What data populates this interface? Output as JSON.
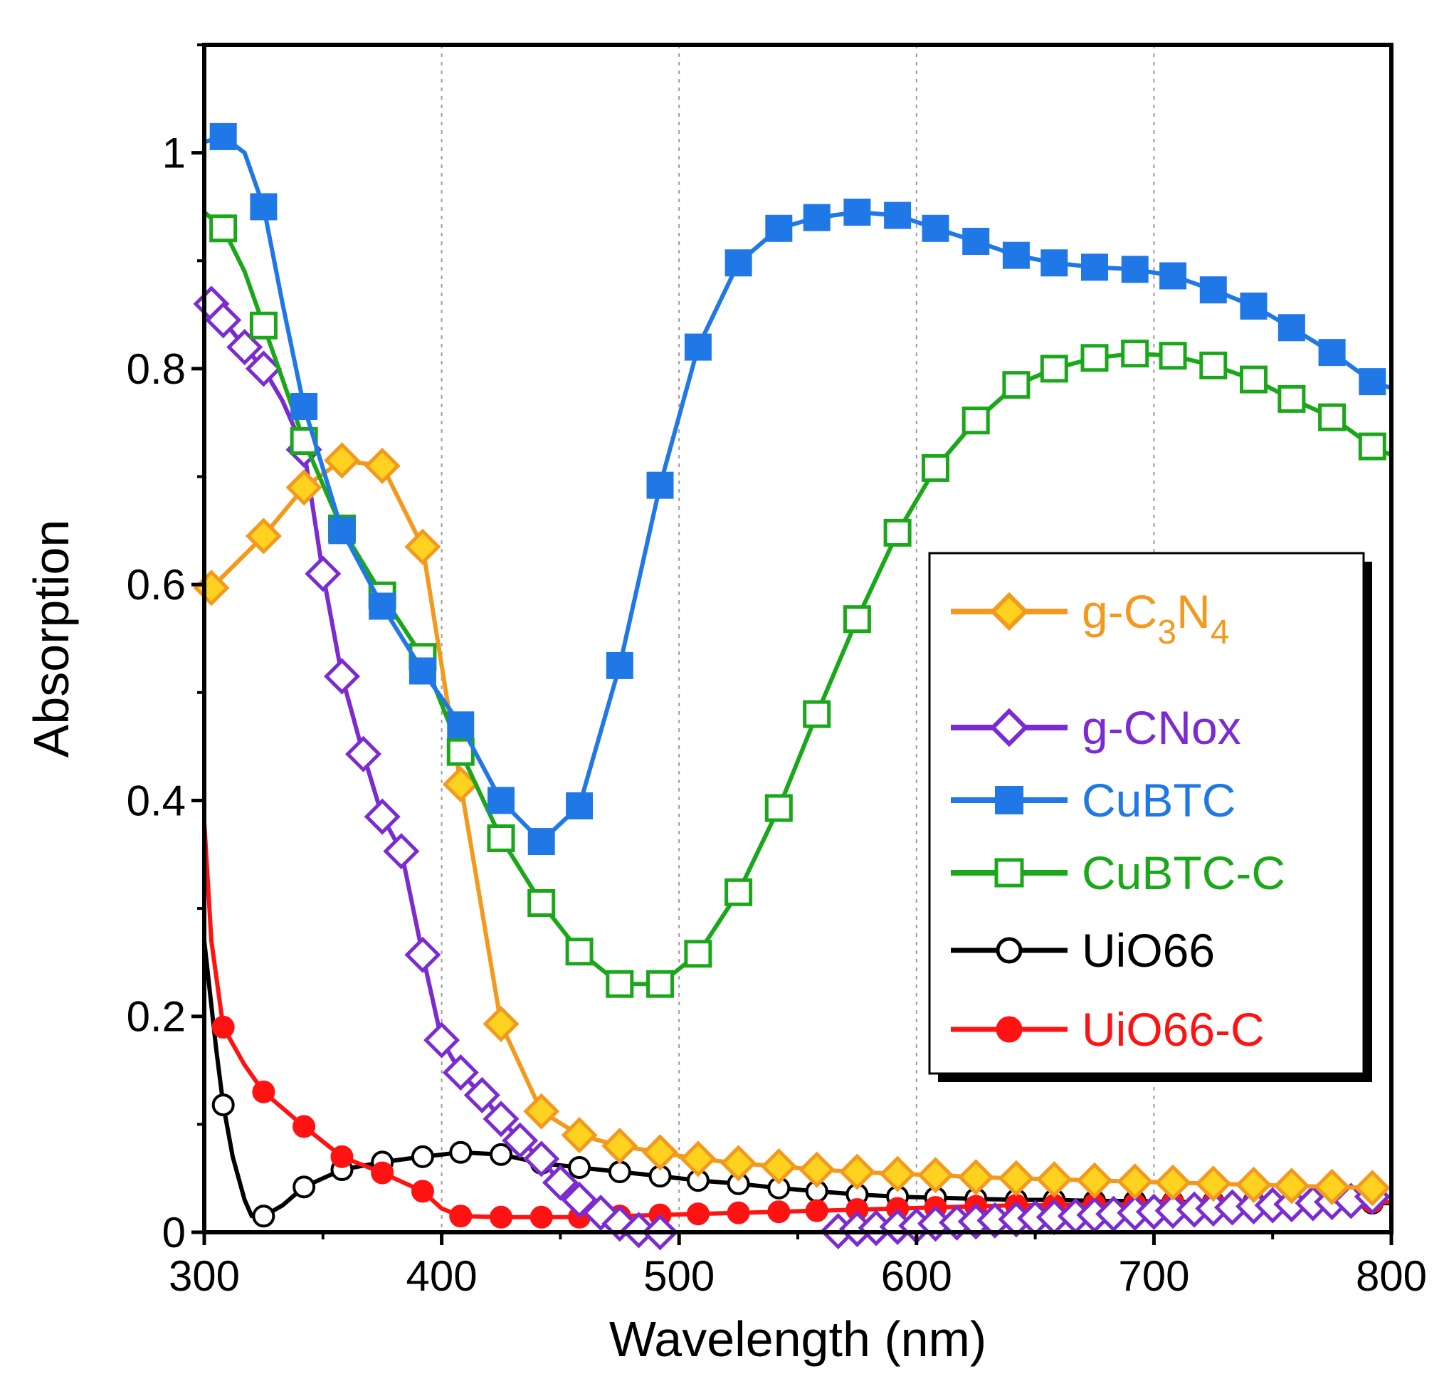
{
  "chart_data": {
    "type": "line",
    "xlabel": "Wavelength (nm)",
    "ylabel": "Absorption",
    "xlim": [
      300,
      800
    ],
    "ylim": [
      0,
      1.1
    ],
    "xticks": [
      300,
      400,
      500,
      600,
      700,
      800
    ],
    "xtick_labels": [
      "300",
      "400",
      "500",
      "600",
      "700",
      "800"
    ],
    "yticks": [
      0,
      0.2,
      0.4,
      0.6,
      0.8,
      1
    ],
    "ytick_labels": [
      "0",
      "0.2",
      "0.4",
      "0.6",
      "0.8",
      "1"
    ],
    "grid": "vertical dotted lines at x = 400, 500, 600, 700",
    "legend_position": "center-right",
    "series": [
      {
        "name": "g-C3N4",
        "label_main": "g-C",
        "label_sub1": "3",
        "label_mid": "N",
        "label_sub2": "4",
        "color": "#f39a1e",
        "fill": "#ffd21f",
        "marker": "diamond-filled",
        "x": [
          303,
          325,
          342,
          358,
          375,
          392,
          408,
          425,
          442,
          458,
          475,
          492,
          508,
          525,
          542,
          558,
          575,
          592,
          608,
          625,
          642,
          658,
          675,
          692,
          708,
          725,
          742,
          758,
          775,
          792
        ],
        "y": [
          0.597,
          0.645,
          0.69,
          0.715,
          0.71,
          0.635,
          0.415,
          0.193,
          0.112,
          0.09,
          0.08,
          0.074,
          0.068,
          0.064,
          0.061,
          0.058,
          0.056,
          0.054,
          0.053,
          0.051,
          0.05,
          0.049,
          0.048,
          0.047,
          0.046,
          0.045,
          0.044,
          0.043,
          0.042,
          0.041
        ]
      },
      {
        "name": "g-CNox",
        "label": "g-CNox",
        "color": "#7b2bd0",
        "fill": "#ffffff",
        "marker": "diamond-open",
        "x": [
          303,
          308,
          317,
          325,
          333,
          342,
          350,
          358,
          367,
          375,
          383,
          392,
          400,
          408,
          417,
          425,
          433,
          442,
          450,
          458,
          467,
          475,
          483,
          492,
          500,
          508,
          517,
          525,
          533,
          542,
          550,
          558,
          567,
          575,
          583,
          592,
          600,
          608,
          617,
          625,
          633,
          642,
          650,
          658,
          667,
          675,
          683,
          692,
          700,
          708,
          717,
          725,
          733,
          742,
          750,
          758,
          767,
          775,
          783,
          792
        ],
        "y": [
          0.86,
          0.845,
          0.82,
          0.8,
          0.77,
          0.725,
          0.61,
          0.515,
          0.443,
          0.385,
          0.353,
          0.257,
          0.178,
          0.148,
          0.127,
          0.105,
          0.085,
          0.068,
          0.046,
          0.03,
          0.018,
          0.008,
          0.002,
          0,
          0,
          0,
          0,
          0,
          0,
          0,
          0,
          0,
          0.001,
          0.003,
          0.004,
          0.005,
          0.006,
          0.008,
          0.009,
          0.01,
          0.011,
          0.012,
          0.013,
          0.014,
          0.015,
          0.016,
          0.017,
          0.018,
          0.019,
          0.02,
          0.021,
          0.022,
          0.023,
          0.024,
          0.025,
          0.026,
          0.027,
          0.028,
          0.029,
          0.033
        ],
        "markers_x": [
          303,
          308,
          317,
          325,
          342,
          350,
          358,
          367,
          375,
          383,
          392,
          400,
          408,
          417,
          425,
          433,
          442,
          450,
          458,
          467,
          475,
          483,
          492,
          567,
          575,
          583,
          592,
          600,
          608,
          617,
          625,
          633,
          642,
          650,
          658,
          667,
          675,
          683,
          692,
          700,
          708,
          717,
          725,
          733,
          742,
          750,
          758,
          767,
          775,
          783,
          792
        ]
      },
      {
        "name": "CuBTC",
        "label": "CuBTC",
        "color": "#1f78e6",
        "fill": "#1f78e6",
        "marker": "square-filled",
        "x": [
          300,
          308,
          317,
          325,
          333,
          342,
          358,
          375,
          392,
          408,
          425,
          442,
          458,
          475,
          492,
          508,
          525,
          542,
          558,
          575,
          592,
          608,
          625,
          642,
          658,
          675,
          692,
          708,
          725,
          742,
          758,
          775,
          792,
          800
        ],
        "y": [
          1.01,
          1.015,
          1.0,
          0.95,
          0.86,
          0.765,
          0.65,
          0.58,
          0.52,
          0.47,
          0.4,
          0.362,
          0.395,
          0.525,
          0.692,
          0.82,
          0.898,
          0.93,
          0.94,
          0.945,
          0.942,
          0.93,
          0.918,
          0.905,
          0.898,
          0.894,
          0.892,
          0.886,
          0.873,
          0.858,
          0.838,
          0.815,
          0.788,
          0.782
        ],
        "markers_x": [
          308,
          325,
          342,
          358,
          375,
          392,
          408,
          425,
          442,
          458,
          475,
          492,
          508,
          525,
          542,
          558,
          575,
          592,
          608,
          625,
          642,
          658,
          675,
          692,
          708,
          725,
          742,
          758,
          775,
          792
        ]
      },
      {
        "name": "CuBTC-C",
        "label": "CuBTC-C",
        "color": "#1aa81a",
        "fill": "#ffffff",
        "marker": "square-open",
        "x": [
          300,
          308,
          317,
          325,
          333,
          342,
          358,
          375,
          392,
          408,
          425,
          442,
          458,
          475,
          492,
          508,
          525,
          542,
          558,
          575,
          592,
          608,
          625,
          642,
          658,
          675,
          692,
          708,
          725,
          742,
          758,
          775,
          792,
          800
        ],
        "y": [
          0.945,
          0.93,
          0.89,
          0.84,
          0.79,
          0.733,
          0.652,
          0.59,
          0.533,
          0.445,
          0.365,
          0.305,
          0.26,
          0.23,
          0.23,
          0.258,
          0.315,
          0.393,
          0.48,
          0.568,
          0.648,
          0.708,
          0.752,
          0.785,
          0.8,
          0.81,
          0.814,
          0.812,
          0.803,
          0.79,
          0.772,
          0.755,
          0.728,
          0.72
        ],
        "markers_x": [
          308,
          325,
          342,
          358,
          375,
          392,
          408,
          425,
          442,
          458,
          475,
          492,
          508,
          525,
          542,
          558,
          575,
          592,
          608,
          625,
          642,
          658,
          675,
          692,
          708,
          725,
          742,
          758,
          775,
          792
        ]
      },
      {
        "name": "UiO66",
        "label": "UiO66",
        "color": "#000000",
        "fill": "#ffffff",
        "marker": "circle-open",
        "x": [
          300,
          305,
          308,
          312,
          317,
          320,
          325,
          333,
          342,
          358,
          375,
          392,
          408,
          425,
          442,
          458,
          475,
          492,
          508,
          525,
          542,
          558,
          575,
          592,
          608,
          625,
          642,
          658,
          675,
          692,
          708,
          725,
          742,
          758,
          775,
          792,
          800
        ],
        "y": [
          0.27,
          0.17,
          0.118,
          0.07,
          0.03,
          0.015,
          0.015,
          0.025,
          0.042,
          0.058,
          0.065,
          0.07,
          0.074,
          0.072,
          0.064,
          0.06,
          0.056,
          0.052,
          0.048,
          0.045,
          0.041,
          0.038,
          0.035,
          0.033,
          0.032,
          0.031,
          0.03,
          0.03,
          0.029,
          0.029,
          0.028,
          0.028,
          0.028,
          0.027,
          0.027,
          0.027,
          0.027
        ],
        "markers_x": [
          308,
          325,
          342,
          358,
          375,
          392,
          408,
          425,
          442,
          458,
          475,
          492,
          508,
          525,
          542,
          558,
          575,
          592,
          608,
          625,
          642,
          658,
          675,
          692,
          708,
          725,
          742,
          758,
          775,
          792
        ]
      },
      {
        "name": "UiO66-C",
        "label": "UiO66-C",
        "color": "#ff1212",
        "fill": "#ff1212",
        "marker": "circle-filled",
        "x": [
          300,
          303,
          308,
          317,
          325,
          333,
          342,
          358,
          375,
          392,
          400,
          408,
          425,
          442,
          458,
          475,
          492,
          508,
          525,
          542,
          558,
          575,
          592,
          608,
          625,
          642,
          658,
          675,
          692,
          708,
          725,
          742,
          758,
          775,
          792,
          800
        ],
        "y": [
          0.38,
          0.27,
          0.19,
          0.155,
          0.13,
          0.115,
          0.098,
          0.07,
          0.055,
          0.038,
          0.022,
          0.015,
          0.014,
          0.014,
          0.014,
          0.015,
          0.016,
          0.017,
          0.018,
          0.019,
          0.02,
          0.021,
          0.022,
          0.023,
          0.024,
          0.025,
          0.025,
          0.026,
          0.026,
          0.027,
          0.027,
          0.027,
          0.027,
          0.028,
          0.028,
          0.028
        ],
        "markers_x": [
          308,
          325,
          342,
          358,
          375,
          392,
          408,
          425,
          442,
          458,
          475,
          492,
          508,
          525,
          542,
          558,
          575,
          592,
          608,
          625,
          642,
          658,
          675,
          692,
          708,
          725,
          742,
          758,
          775,
          792
        ]
      }
    ]
  }
}
